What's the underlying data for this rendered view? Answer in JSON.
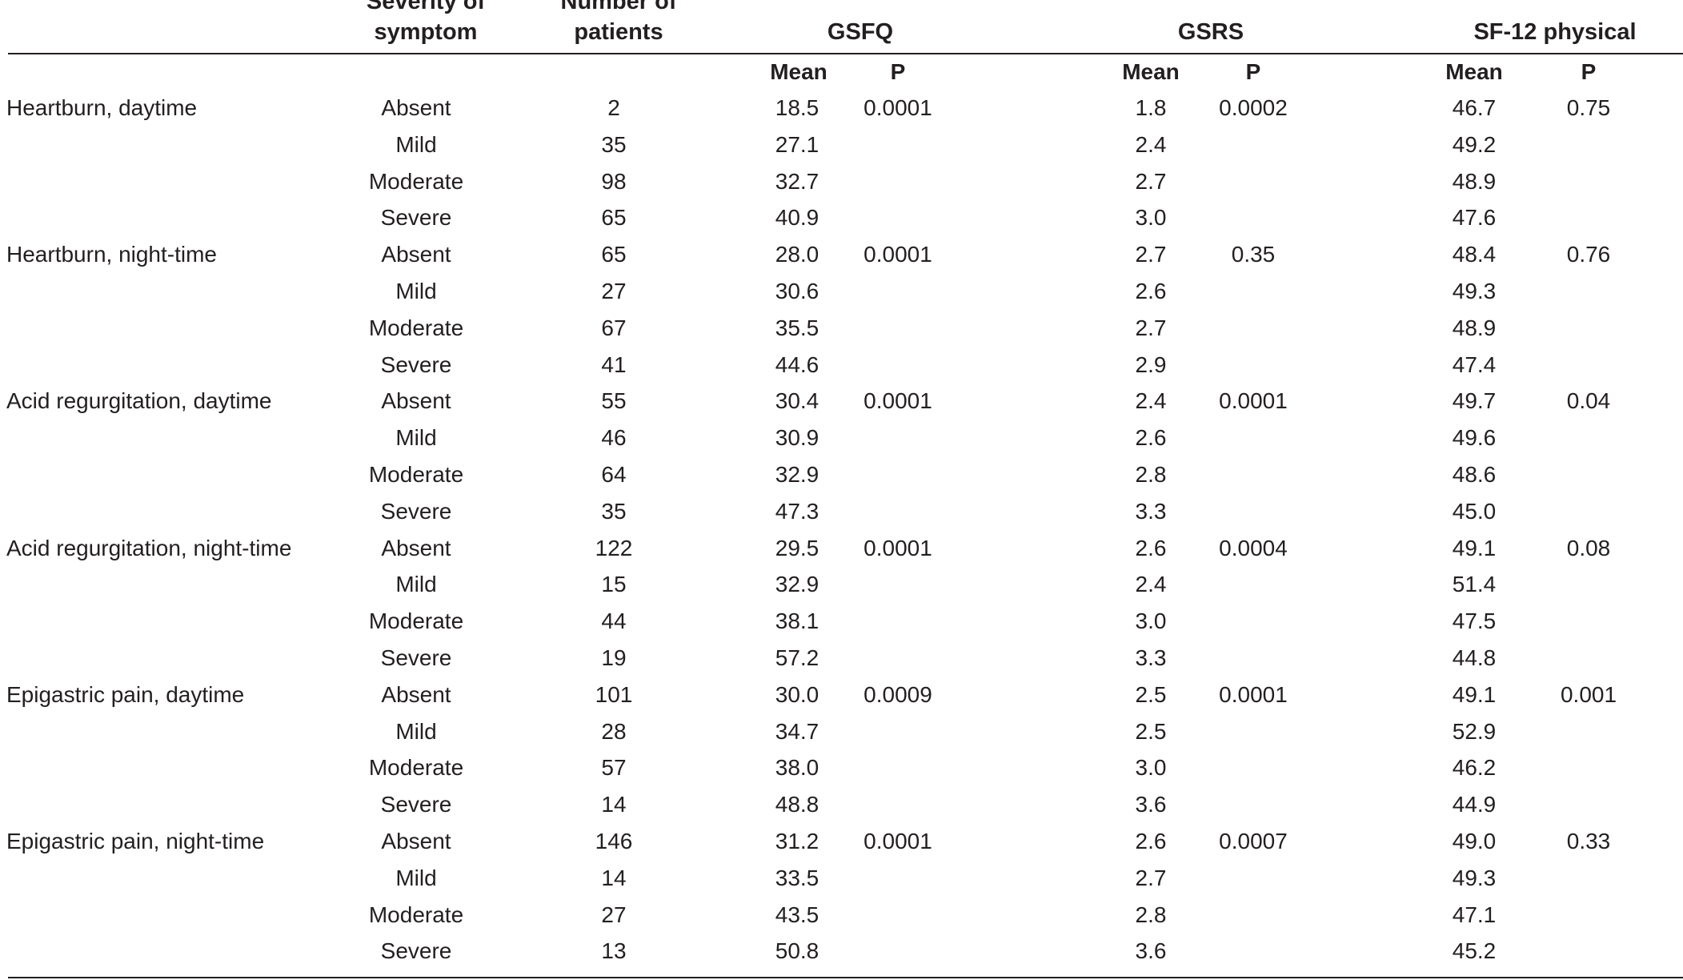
{
  "table": {
    "headers": {
      "severity": [
        "Severity of",
        "symptom"
      ],
      "patients": [
        "Number of",
        "patients"
      ],
      "gsfq": "GSFQ",
      "gsrs": "GSRS",
      "sf12": "SF-12 physical"
    },
    "subheaders": {
      "gsfq_mean": "Mean",
      "gsfq_p": "P",
      "gsrs_mean": "Mean",
      "gsrs_p": "P",
      "sf12_mean": "Mean",
      "sf12_p": "P"
    },
    "rows": [
      {
        "symptom": "Heartburn, daytime",
        "severity": "Absent",
        "n": "2",
        "gsfq_mean": "18.5",
        "gsfq_p": "0.0001",
        "gsrs_mean": "1.8",
        "gsrs_p": "0.0002",
        "sf12_mean": "46.7",
        "sf12_p": "0.75"
      },
      {
        "symptom": "",
        "severity": "Mild",
        "n": "35",
        "gsfq_mean": "27.1",
        "gsfq_p": "",
        "gsrs_mean": "2.4",
        "gsrs_p": "",
        "sf12_mean": "49.2",
        "sf12_p": ""
      },
      {
        "symptom": "",
        "severity": "Moderate",
        "n": "98",
        "gsfq_mean": "32.7",
        "gsfq_p": "",
        "gsrs_mean": "2.7",
        "gsrs_p": "",
        "sf12_mean": "48.9",
        "sf12_p": ""
      },
      {
        "symptom": "",
        "severity": "Severe",
        "n": "65",
        "gsfq_mean": "40.9",
        "gsfq_p": "",
        "gsrs_mean": "3.0",
        "gsrs_p": "",
        "sf12_mean": "47.6",
        "sf12_p": ""
      },
      {
        "symptom": "Heartburn, night-time",
        "severity": "Absent",
        "n": "65",
        "gsfq_mean": "28.0",
        "gsfq_p": "0.0001",
        "gsrs_mean": "2.7",
        "gsrs_p": "0.35",
        "sf12_mean": "48.4",
        "sf12_p": "0.76"
      },
      {
        "symptom": "",
        "severity": "Mild",
        "n": "27",
        "gsfq_mean": "30.6",
        "gsfq_p": "",
        "gsrs_mean": "2.6",
        "gsrs_p": "",
        "sf12_mean": "49.3",
        "sf12_p": ""
      },
      {
        "symptom": "",
        "severity": "Moderate",
        "n": "67",
        "gsfq_mean": "35.5",
        "gsfq_p": "",
        "gsrs_mean": "2.7",
        "gsrs_p": "",
        "sf12_mean": "48.9",
        "sf12_p": ""
      },
      {
        "symptom": "",
        "severity": "Severe",
        "n": "41",
        "gsfq_mean": "44.6",
        "gsfq_p": "",
        "gsrs_mean": "2.9",
        "gsrs_p": "",
        "sf12_mean": "47.4",
        "sf12_p": ""
      },
      {
        "symptom": "Acid regurgitation, daytime",
        "severity": "Absent",
        "n": "55",
        "gsfq_mean": "30.4",
        "gsfq_p": "0.0001",
        "gsrs_mean": "2.4",
        "gsrs_p": "0.0001",
        "sf12_mean": "49.7",
        "sf12_p": "0.04"
      },
      {
        "symptom": "",
        "severity": "Mild",
        "n": "46",
        "gsfq_mean": "30.9",
        "gsfq_p": "",
        "gsrs_mean": "2.6",
        "gsrs_p": "",
        "sf12_mean": "49.6",
        "sf12_p": ""
      },
      {
        "symptom": "",
        "severity": "Moderate",
        "n": "64",
        "gsfq_mean": "32.9",
        "gsfq_p": "",
        "gsrs_mean": "2.8",
        "gsrs_p": "",
        "sf12_mean": "48.6",
        "sf12_p": ""
      },
      {
        "symptom": "",
        "severity": "Severe",
        "n": "35",
        "gsfq_mean": "47.3",
        "gsfq_p": "",
        "gsrs_mean": "3.3",
        "gsrs_p": "",
        "sf12_mean": "45.0",
        "sf12_p": ""
      },
      {
        "symptom": "Acid regurgitation, night-time",
        "severity": "Absent",
        "n": "122",
        "gsfq_mean": "29.5",
        "gsfq_p": "0.0001",
        "gsrs_mean": "2.6",
        "gsrs_p": "0.0004",
        "sf12_mean": "49.1",
        "sf12_p": "0.08"
      },
      {
        "symptom": "",
        "severity": "Mild",
        "n": "15",
        "gsfq_mean": "32.9",
        "gsfq_p": "",
        "gsrs_mean": "2.4",
        "gsrs_p": "",
        "sf12_mean": "51.4",
        "sf12_p": ""
      },
      {
        "symptom": "",
        "severity": "Moderate",
        "n": "44",
        "gsfq_mean": "38.1",
        "gsfq_p": "",
        "gsrs_mean": "3.0",
        "gsrs_p": "",
        "sf12_mean": "47.5",
        "sf12_p": ""
      },
      {
        "symptom": "",
        "severity": "Severe",
        "n": "19",
        "gsfq_mean": "57.2",
        "gsfq_p": "",
        "gsrs_mean": "3.3",
        "gsrs_p": "",
        "sf12_mean": "44.8",
        "sf12_p": ""
      },
      {
        "symptom": "Epigastric pain, daytime",
        "severity": "Absent",
        "n": "101",
        "gsfq_mean": "30.0",
        "gsfq_p": "0.0009",
        "gsrs_mean": "2.5",
        "gsrs_p": "0.0001",
        "sf12_mean": "49.1",
        "sf12_p": "0.001"
      },
      {
        "symptom": "",
        "severity": "Mild",
        "n": "28",
        "gsfq_mean": "34.7",
        "gsfq_p": "",
        "gsrs_mean": "2.5",
        "gsrs_p": "",
        "sf12_mean": "52.9",
        "sf12_p": ""
      },
      {
        "symptom": "",
        "severity": "Moderate",
        "n": "57",
        "gsfq_mean": "38.0",
        "gsfq_p": "",
        "gsrs_mean": "3.0",
        "gsrs_p": "",
        "sf12_mean": "46.2",
        "sf12_p": ""
      },
      {
        "symptom": "",
        "severity": "Severe",
        "n": "14",
        "gsfq_mean": "48.8",
        "gsfq_p": "",
        "gsrs_mean": "3.6",
        "gsrs_p": "",
        "sf12_mean": "44.9",
        "sf12_p": ""
      },
      {
        "symptom": "Epigastric pain, night-time",
        "severity": "Absent",
        "n": "146",
        "gsfq_mean": "31.2",
        "gsfq_p": "0.0001",
        "gsrs_mean": "2.6",
        "gsrs_p": "0.0007",
        "sf12_mean": "49.0",
        "sf12_p": "0.33"
      },
      {
        "symptom": "",
        "severity": "Mild",
        "n": "14",
        "gsfq_mean": "33.5",
        "gsfq_p": "",
        "gsrs_mean": "2.7",
        "gsrs_p": "",
        "sf12_mean": "49.3",
        "sf12_p": ""
      },
      {
        "symptom": "",
        "severity": "Moderate",
        "n": "27",
        "gsfq_mean": "43.5",
        "gsfq_p": "",
        "gsrs_mean": "2.8",
        "gsrs_p": "",
        "sf12_mean": "47.1",
        "sf12_p": ""
      },
      {
        "symptom": "",
        "severity": "Severe",
        "n": "13",
        "gsfq_mean": "50.8",
        "gsfq_p": "",
        "gsrs_mean": "3.6",
        "gsrs_p": "",
        "sf12_mean": "45.2",
        "sf12_p": ""
      }
    ]
  }
}
